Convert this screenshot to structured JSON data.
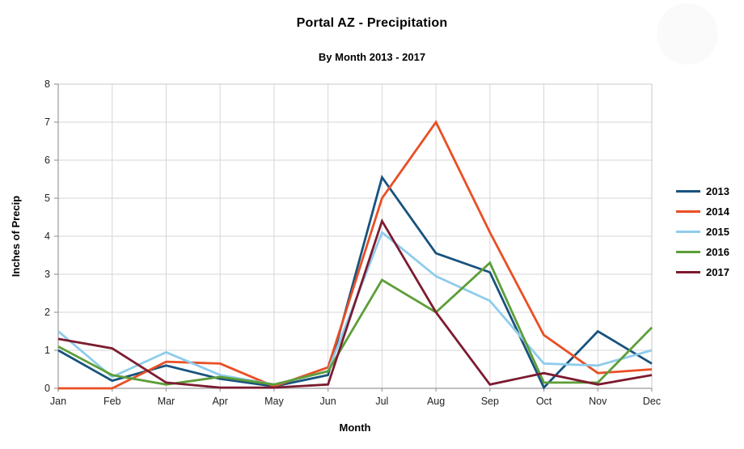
{
  "chart_data": {
    "type": "line",
    "title": "Portal AZ - Precipitation",
    "subtitle": "By Month 2013 - 2017",
    "xlabel": "Month",
    "ylabel": "Inches of Precip",
    "ylim": [
      0,
      8
    ],
    "y_ticks": [
      0,
      1,
      2,
      3,
      4,
      5,
      6,
      7,
      8
    ],
    "grid": true,
    "legend_position": "right",
    "categories": [
      "Jan",
      "Feb",
      "Mar",
      "Apr",
      "May",
      "Jun",
      "Jul",
      "Aug",
      "Sep",
      "Oct",
      "Nov",
      "Dec"
    ],
    "series": [
      {
        "name": "2013",
        "color": "#17537E",
        "values": [
          1.0,
          0.2,
          0.6,
          0.25,
          0.05,
          0.35,
          5.55,
          3.55,
          3.05,
          0.02,
          1.5,
          0.65
        ]
      },
      {
        "name": "2014",
        "color": "#E94F25",
        "values": [
          0.0,
          0.0,
          0.7,
          0.65,
          0.05,
          0.55,
          5.0,
          7.0,
          4.1,
          1.4,
          0.4,
          0.5
        ]
      },
      {
        "name": "2015",
        "color": "#8FCCEC",
        "values": [
          1.5,
          0.3,
          0.95,
          0.35,
          0.1,
          0.45,
          4.1,
          2.95,
          2.3,
          0.65,
          0.6,
          1.0
        ]
      },
      {
        "name": "2016",
        "color": "#5C9E38",
        "values": [
          1.1,
          0.35,
          0.1,
          0.3,
          0.1,
          0.45,
          2.85,
          2.0,
          3.3,
          0.15,
          0.15,
          1.6
        ]
      },
      {
        "name": "2017",
        "color": "#7C1B30",
        "values": [
          1.3,
          1.05,
          0.15,
          0.02,
          0.02,
          0.1,
          4.4,
          2.0,
          0.1,
          0.4,
          0.1,
          0.35
        ]
      }
    ],
    "colors": {
      "gridline": "#d6d6d6",
      "axis": "#9b9b9b",
      "border": "#c8c8c8",
      "tick_text": "#222222"
    }
  }
}
